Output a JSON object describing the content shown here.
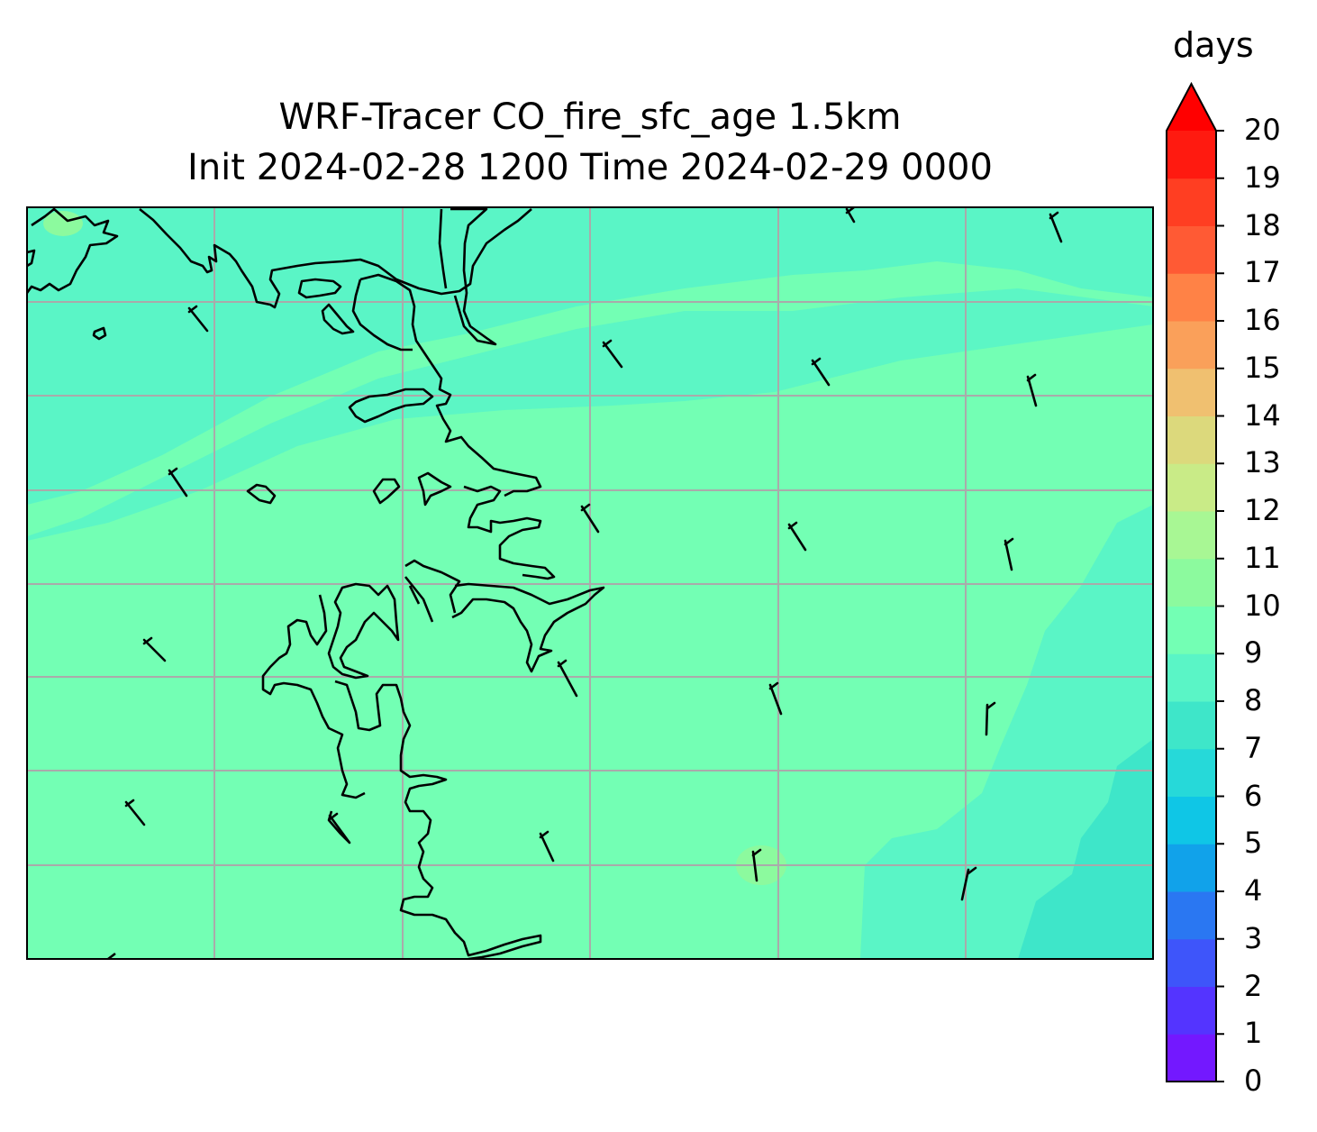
{
  "title": {
    "line1": "WRF-Tracer CO_fire_sfc_age 1.5km",
    "line2": "Init 2024-02-28 1200 Time 2024-02-29 0000"
  },
  "colorbar": {
    "label": "days",
    "ticks": [
      "0",
      "1",
      "2",
      "3",
      "4",
      "5",
      "6",
      "7",
      "8",
      "9",
      "10",
      "11",
      "12",
      "13",
      "14",
      "15",
      "16",
      "17",
      "18",
      "19",
      "20"
    ],
    "colors": [
      "#7318ff",
      "#5434ff",
      "#3e55fa",
      "#2a77f2",
      "#11a2ea",
      "#0fc6e6",
      "#26d9d9",
      "#3ee6c9",
      "#5af5c6",
      "#73ffb4",
      "#8cfa9e",
      "#a8f794",
      "#c9eb87",
      "#dcd97c",
      "#f0c070",
      "#faa05a",
      "#ff8246",
      "#ff5a34",
      "#ff3e22",
      "#ff1a10"
    ],
    "extend_color": "#ff0000",
    "extend": "max"
  },
  "map": {
    "field_base_color": "#73ffb4",
    "band_color": "#5af5c6",
    "east_color": "#3ee6c9",
    "gridline_color": "#aaaaaa",
    "coastline_color": "#000000"
  }
}
